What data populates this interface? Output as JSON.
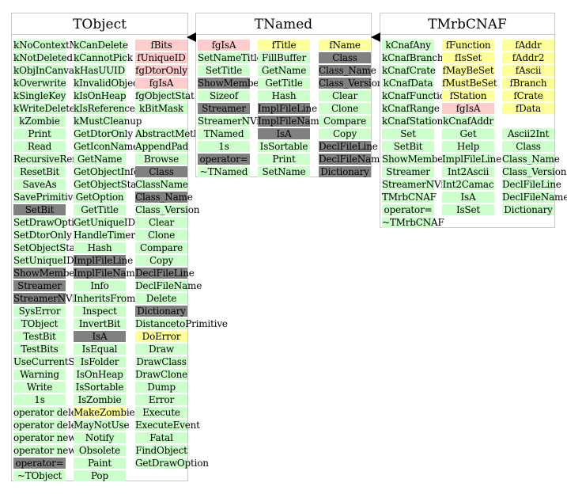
{
  "classes": [
    {
      "name": "TObject",
      "columns": [
        [
          {
            "t": "kNoContextMenu",
            "k": "m"
          },
          {
            "t": "kNotDeleted",
            "k": "m"
          },
          {
            "t": "kObjInCanvas",
            "k": "m"
          },
          {
            "t": "kOverwrite",
            "k": "m"
          },
          {
            "t": "kSingleKey",
            "k": "m"
          },
          {
            "t": "kWriteDelete",
            "k": "m"
          },
          {
            "t": "kZombie",
            "k": "m"
          },
          {
            "t": "Print",
            "k": "m"
          },
          {
            "t": "Read",
            "k": "m"
          },
          {
            "t": "RecursiveRemove",
            "k": "m"
          },
          {
            "t": "ResetBit",
            "k": "m"
          },
          {
            "t": "SaveAs",
            "k": "m"
          },
          {
            "t": "SavePrimitive",
            "k": "m"
          },
          {
            "t": "SetBit",
            "k": "g"
          },
          {
            "t": "SetDrawOption",
            "k": "m"
          },
          {
            "t": "SetDtorOnly",
            "k": "m"
          },
          {
            "t": "SetObjectStat",
            "k": "m"
          },
          {
            "t": "SetUniqueID",
            "k": "m"
          },
          {
            "t": "ShowMembers",
            "k": "g"
          },
          {
            "t": "Streamer",
            "k": "g"
          },
          {
            "t": "StreamerNVirtual",
            "k": "g"
          },
          {
            "t": "SysError",
            "k": "m"
          },
          {
            "t": "TObject",
            "k": "m"
          },
          {
            "t": "TestBit",
            "k": "m"
          },
          {
            "t": "TestBits",
            "k": "m"
          },
          {
            "t": "UseCurrentStyle",
            "k": "m"
          },
          {
            "t": "Warning",
            "k": "m"
          },
          {
            "t": "Write",
            "k": "m"
          },
          {
            "t": "1s",
            "k": "m"
          },
          {
            "t": "operator delete",
            "k": "m"
          },
          {
            "t": "operator delete[]",
            "k": "m"
          },
          {
            "t": "operator new",
            "k": "m"
          },
          {
            "t": "operator new[]",
            "k": "m"
          },
          {
            "t": "operator=",
            "k": "g"
          },
          {
            "t": "~TObject",
            "k": "m"
          }
        ],
        [
          {
            "t": "kCanDelete",
            "k": "m"
          },
          {
            "t": "kCannotPick",
            "k": "m"
          },
          {
            "t": "kHasUUID",
            "k": "m"
          },
          {
            "t": "kInvalidObject",
            "k": "m"
          },
          {
            "t": "kIsOnHeap",
            "k": "m"
          },
          {
            "t": "kIsReferenced",
            "k": "m"
          },
          {
            "t": "kMustCleanup",
            "k": "m"
          },
          {
            "t": "GetDtorOnly",
            "k": "m"
          },
          {
            "t": "GetIconName",
            "k": "m"
          },
          {
            "t": "GetName",
            "k": "m"
          },
          {
            "t": "GetObjectInfo",
            "k": "m"
          },
          {
            "t": "GetObjectStat",
            "k": "m"
          },
          {
            "t": "GetOption",
            "k": "m"
          },
          {
            "t": "GetTitle",
            "k": "m"
          },
          {
            "t": "GetUniqueID",
            "k": "m"
          },
          {
            "t": "HandleTimer",
            "k": "m"
          },
          {
            "t": "Hash",
            "k": "m"
          },
          {
            "t": "ImplFileLine",
            "k": "g"
          },
          {
            "t": "ImplFileName",
            "k": "g"
          },
          {
            "t": "Info",
            "k": "m"
          },
          {
            "t": "InheritsFrom",
            "k": "m"
          },
          {
            "t": "Inspect",
            "k": "m"
          },
          {
            "t": "InvertBit",
            "k": "m"
          },
          {
            "t": "IsA",
            "k": "g"
          },
          {
            "t": "IsEqual",
            "k": "m"
          },
          {
            "t": "IsFolder",
            "k": "m"
          },
          {
            "t": "IsOnHeap",
            "k": "m"
          },
          {
            "t": "IsSortable",
            "k": "m"
          },
          {
            "t": "IsZombie",
            "k": "m"
          },
          {
            "t": "MakeZombie",
            "k": "h"
          },
          {
            "t": "MayNotUse",
            "k": "m"
          },
          {
            "t": "Notify",
            "k": "m"
          },
          {
            "t": "Obsolete",
            "k": "m"
          },
          {
            "t": "Paint",
            "k": "m"
          },
          {
            "t": "Pop",
            "k": "m"
          }
        ],
        [
          {
            "t": "fBits",
            "k": "d"
          },
          {
            "t": "fUniqueID",
            "k": "d"
          },
          {
            "t": "fgDtorOnly",
            "k": "d"
          },
          {
            "t": "fgIsA",
            "k": "d"
          },
          {
            "t": "fgObjectStat",
            "k": "m"
          },
          {
            "t": "kBitMask",
            "k": "m"
          },
          {
            "t": "",
            "k": "w"
          },
          {
            "t": "AbstractMethod",
            "k": "m"
          },
          {
            "t": "AppendPad",
            "k": "m"
          },
          {
            "t": "Browse",
            "k": "m"
          },
          {
            "t": "Class",
            "k": "g"
          },
          {
            "t": "ClassName",
            "k": "m"
          },
          {
            "t": "Class_Name",
            "k": "g"
          },
          {
            "t": "Class_Version",
            "k": "m"
          },
          {
            "t": "Clear",
            "k": "m"
          },
          {
            "t": "Clone",
            "k": "m"
          },
          {
            "t": "Compare",
            "k": "m"
          },
          {
            "t": "Copy",
            "k": "m"
          },
          {
            "t": "DeclFileLine",
            "k": "g"
          },
          {
            "t": "DeclFileName",
            "k": "m"
          },
          {
            "t": "Delete",
            "k": "m"
          },
          {
            "t": "Dictionary",
            "k": "g"
          },
          {
            "t": "DistancetoPrimitive",
            "k": "m"
          },
          {
            "t": "DoError",
            "k": "h"
          },
          {
            "t": "Draw",
            "k": "m"
          },
          {
            "t": "DrawClass",
            "k": "m"
          },
          {
            "t": "DrawClone",
            "k": "m"
          },
          {
            "t": "Dump",
            "k": "m"
          },
          {
            "t": "Error",
            "k": "m"
          },
          {
            "t": "Execute",
            "k": "m"
          },
          {
            "t": "ExecuteEvent",
            "k": "m"
          },
          {
            "t": "Fatal",
            "k": "m"
          },
          {
            "t": "FindObject",
            "k": "m"
          },
          {
            "t": "GetDrawOption",
            "k": "m"
          }
        ]
      ]
    },
    {
      "name": "TNamed",
      "columns": [
        [
          {
            "t": "fgIsA",
            "k": "d"
          },
          {
            "t": "SetNameTitle",
            "k": "m"
          },
          {
            "t": "SetTitle",
            "k": "m"
          },
          {
            "t": "ShowMembers",
            "k": "g"
          },
          {
            "t": "Sizeof",
            "k": "m"
          },
          {
            "t": "Streamer",
            "k": "g"
          },
          {
            "t": "StreamerNVirtual",
            "k": "m"
          },
          {
            "t": "TNamed",
            "k": "m"
          },
          {
            "t": "1s",
            "k": "m"
          },
          {
            "t": "operator=",
            "k": "g"
          },
          {
            "t": "~TNamed",
            "k": "m"
          }
        ],
        [
          {
            "t": "fTitle",
            "k": "h"
          },
          {
            "t": "FillBuffer",
            "k": "m"
          },
          {
            "t": "GetName",
            "k": "m"
          },
          {
            "t": "GetTitle",
            "k": "m"
          },
          {
            "t": "Hash",
            "k": "m"
          },
          {
            "t": "ImplFileLine",
            "k": "g"
          },
          {
            "t": "ImplFileName",
            "k": "g"
          },
          {
            "t": "IsA",
            "k": "g"
          },
          {
            "t": "IsSortable",
            "k": "m"
          },
          {
            "t": "Print",
            "k": "m"
          },
          {
            "t": "SetName",
            "k": "m"
          }
        ],
        [
          {
            "t": "fName",
            "k": "h"
          },
          {
            "t": "Class",
            "k": "g"
          },
          {
            "t": "Class_Name",
            "k": "g"
          },
          {
            "t": "Class_Version",
            "k": "g"
          },
          {
            "t": "Clear",
            "k": "m"
          },
          {
            "t": "Clone",
            "k": "m"
          },
          {
            "t": "Compare",
            "k": "m"
          },
          {
            "t": "Copy",
            "k": "m"
          },
          {
            "t": "DeclFileLine",
            "k": "g"
          },
          {
            "t": "DeclFileName",
            "k": "g"
          },
          {
            "t": "Dictionary",
            "k": "g"
          }
        ]
      ]
    },
    {
      "name": "TMrbCNAF",
      "columns": [
        [
          {
            "t": "kCnafAny",
            "k": "m"
          },
          {
            "t": "kCnafBranch",
            "k": "m"
          },
          {
            "t": "kCnafCrate",
            "k": "m"
          },
          {
            "t": "kCnafData",
            "k": "m"
          },
          {
            "t": "kCnafFunction",
            "k": "m"
          },
          {
            "t": "kCnafRange",
            "k": "m"
          },
          {
            "t": "kCnafStation",
            "k": "m"
          },
          {
            "t": "Set",
            "k": "m"
          },
          {
            "t": "SetBit",
            "k": "m"
          },
          {
            "t": "ShowMembers",
            "k": "m"
          },
          {
            "t": "Streamer",
            "k": "m"
          },
          {
            "t": "StreamerNVirtual",
            "k": "m"
          },
          {
            "t": "TMrbCNAF",
            "k": "m"
          },
          {
            "t": "operator=",
            "k": "m"
          },
          {
            "t": "~TMrbCNAF",
            "k": "m"
          }
        ],
        [
          {
            "t": "fFunction",
            "k": "h"
          },
          {
            "t": "fIsSet",
            "k": "h"
          },
          {
            "t": "fMayBeSet",
            "k": "h"
          },
          {
            "t": "fMustBeSet",
            "k": "h"
          },
          {
            "t": "fStation",
            "k": "h"
          },
          {
            "t": "fgIsA",
            "k": "d"
          },
          {
            "t": "kCnafAddr",
            "k": "m"
          },
          {
            "t": "Get",
            "k": "m"
          },
          {
            "t": "Help",
            "k": "m"
          },
          {
            "t": "ImplFileLine",
            "k": "m"
          },
          {
            "t": "Int2Ascii",
            "k": "m"
          },
          {
            "t": "Int2Camac",
            "k": "m"
          },
          {
            "t": "IsA",
            "k": "m"
          },
          {
            "t": "IsSet",
            "k": "m"
          }
        ],
        [
          {
            "t": "fAddr",
            "k": "h"
          },
          {
            "t": "fAddr2",
            "k": "h"
          },
          {
            "t": "fAscii",
            "k": "h"
          },
          {
            "t": "fBranch",
            "k": "h"
          },
          {
            "t": "fCrate",
            "k": "h"
          },
          {
            "t": "fData",
            "k": "h"
          },
          {
            "t": "",
            "k": "w"
          },
          {
            "t": "Ascii2Int",
            "k": "m"
          },
          {
            "t": "Class",
            "k": "m"
          },
          {
            "t": "Class_Name",
            "k": "m"
          },
          {
            "t": "Class_Version",
            "k": "m"
          },
          {
            "t": "DeclFileLine",
            "k": "m"
          },
          {
            "t": "DeclFileName",
            "k": "m"
          },
          {
            "t": "Dictionary",
            "k": "m"
          }
        ]
      ]
    }
  ],
  "colors": {
    "method": "#ccffcc",
    "data_member": "#ffcccc",
    "highlight": "#ffff99",
    "inherited": "#808080"
  }
}
